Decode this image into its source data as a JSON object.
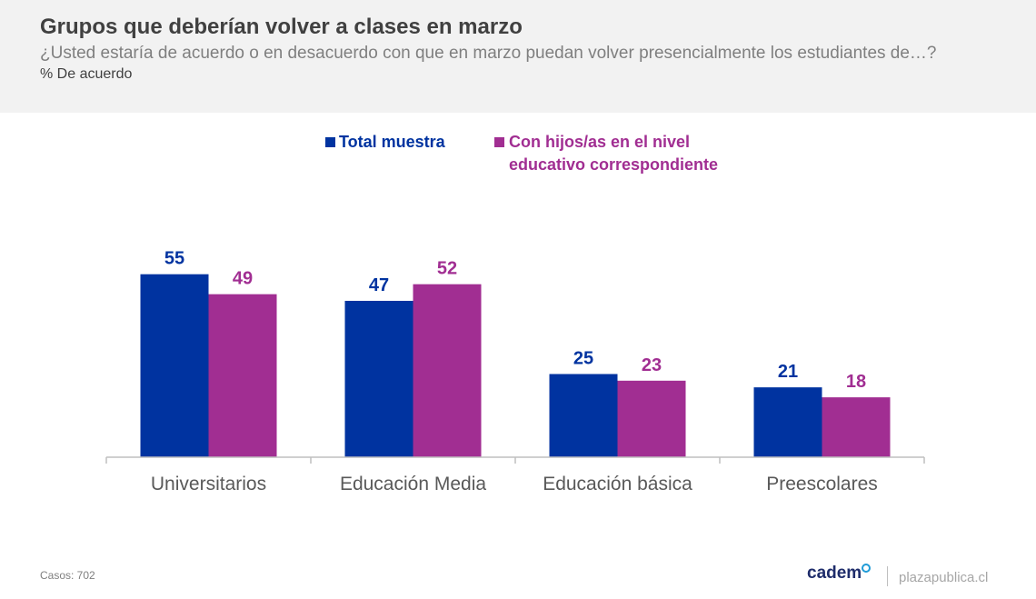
{
  "header": {
    "title": "Grupos que deberían volver a clases en marzo",
    "subtitle": "¿Usted estaría de acuerdo o en desacuerdo con que en marzo puedan volver presencialmente los estudiantes de…?",
    "unit": "% De acuerdo"
  },
  "legend": {
    "total": "Total muestra",
    "hijos": "Con hijos/as en el nivel educativo correspondiente"
  },
  "colors": {
    "total": "#0033a0",
    "hijos": "#a12e92",
    "axis": "#bfbfbf",
    "tick_label": "#595959"
  },
  "chart_data": {
    "type": "bar",
    "categories": [
      "Universitarios",
      "Educación Media",
      "Educación básica",
      "Preescolares"
    ],
    "series": [
      {
        "name": "Total muestra",
        "values": [
          55,
          47,
          25,
          21
        ]
      },
      {
        "name": "Con hijos/as en el nivel educativo correspondiente",
        "values": [
          49,
          52,
          23,
          18
        ]
      }
    ],
    "ylim": [
      0,
      60
    ],
    "grid": false,
    "legend_position": "top"
  },
  "footer": {
    "cases": "Casos: 702",
    "brand": "cadem",
    "site": "plazapublica.cl"
  }
}
